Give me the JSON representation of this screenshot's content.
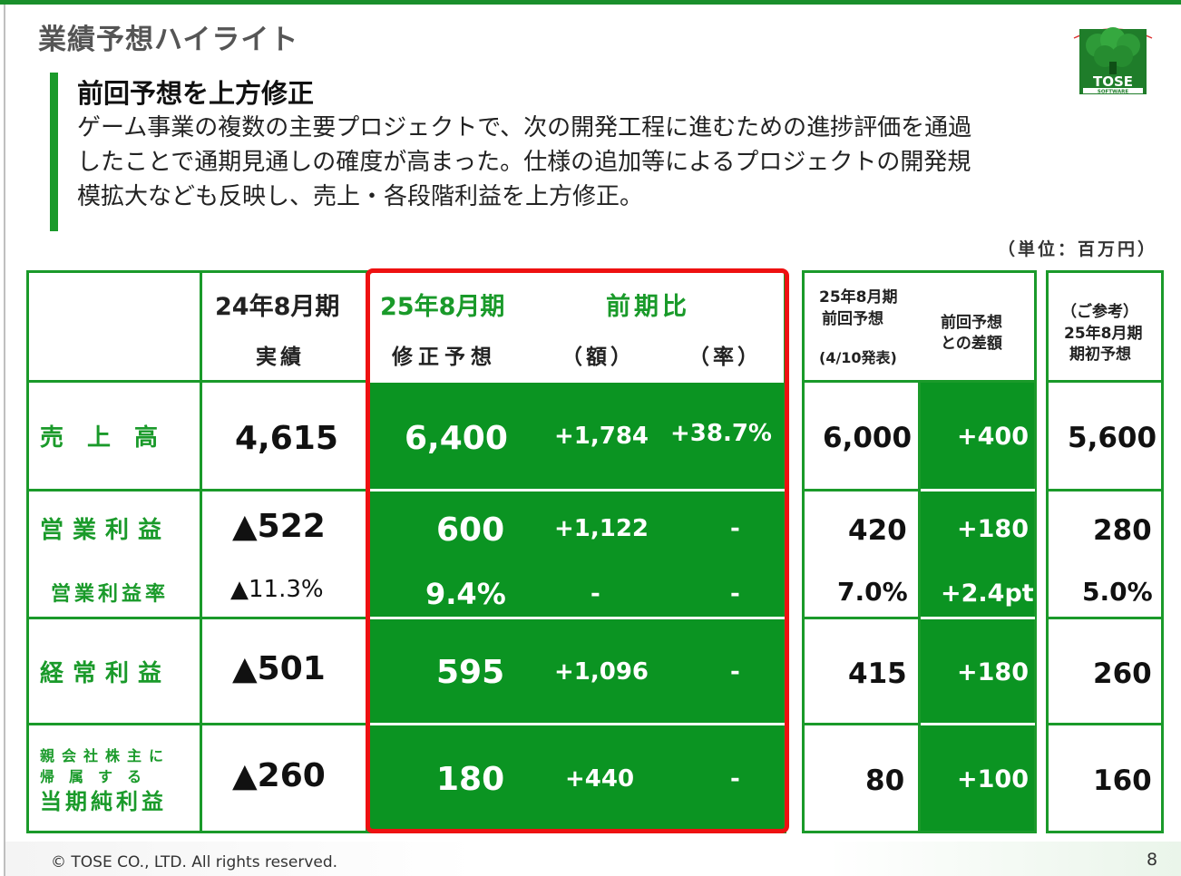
{
  "slide": {
    "title": "業績予想ハイライト",
    "subtitle": "前回予想を上方修正",
    "body_lines": [
      "ゲーム事業の複数の主要プロジェクトで、次の開発工程に進むための進捗評価を通過",
      "したことで通期見通しの確度が高まった。仕様の追加等によるプロジェクトの開発規",
      "模拡大なども反映し、売上・各段階利益を上方修正。"
    ],
    "unit": "（単位：百万円）",
    "logo_text": "TOSE",
    "logo_sub": "SOFTWARE",
    "footer": "© TOSE CO., LTD. All rights reserved.",
    "page_number": "8"
  },
  "colors": {
    "accent_green": "#1a9a2a",
    "fill_green": "#0b9422",
    "highlight_red": "#ee1111"
  },
  "headers": {
    "fy24": "24年8月期",
    "fy24_sub": "実績",
    "fy25": "25年8月期",
    "fy25_sub": "修正予想",
    "yoy": "前期比",
    "yoy_amount": "（額）",
    "yoy_rate": "（率）",
    "prev_line1": "25年8月期",
    "prev_line2": "前回予想",
    "prev_line3": "(4/10発表)",
    "diff_line1": "前回予想",
    "diff_line2": "との差額",
    "init_line1": "（ご参考）",
    "init_line2": "25年8月期",
    "init_line3": "期初予想"
  },
  "rows": {
    "sales": {
      "label": "売　上　高",
      "fy24": "4,615",
      "fy25": "6,400",
      "yoy_amount": "+1,784",
      "yoy_rate": "+38.7%",
      "prev": "6,000",
      "diff": "+400",
      "initial": "5,600"
    },
    "op_income": {
      "label": "営業利益",
      "fy24": "▲522",
      "fy25": "600",
      "yoy_amount": "+1,122",
      "yoy_rate": "-",
      "prev": "420",
      "diff": "+180",
      "initial": "280"
    },
    "op_margin": {
      "label": "営業利益率",
      "fy24": "▲11.3%",
      "fy25": "9.4%",
      "yoy_amount": "-",
      "yoy_rate": "-",
      "prev": "7.0%",
      "diff": "+2.4pt",
      "initial": "5.0%"
    },
    "ordinary": {
      "label": "経常利益",
      "fy24": "▲501",
      "fy25": "595",
      "yoy_amount": "+1,096",
      "yoy_rate": "-",
      "prev": "415",
      "diff": "+180",
      "initial": "260"
    },
    "net_income": {
      "label_line1": "親会社株主に",
      "label_line2": "帰　属　す　る",
      "label_line3": "当期純利益",
      "fy24": "▲260",
      "fy25": "180",
      "yoy_amount": "+440",
      "yoy_rate": "-",
      "prev": "80",
      "diff": "+100",
      "initial": "160"
    }
  }
}
